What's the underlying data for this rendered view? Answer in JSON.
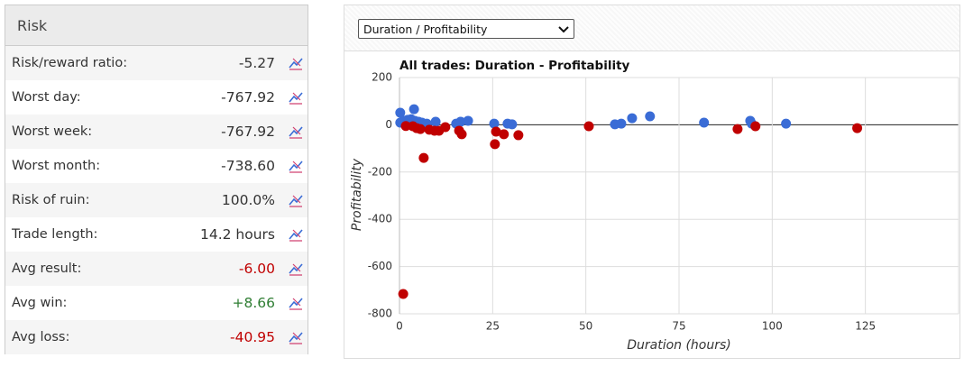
{
  "panel": {
    "title": "Risk",
    "rows": [
      {
        "label": "Risk/reward ratio:",
        "value": "-5.27"
      },
      {
        "label": "Worst day:",
        "value": "-767.92"
      },
      {
        "label": "Worst week:",
        "value": "-767.92"
      },
      {
        "label": "Worst month:",
        "value": "-738.60"
      },
      {
        "label": "Risk of ruin:",
        "value": "100.0%"
      },
      {
        "label": "Trade length:",
        "value": "14.2 hours"
      },
      {
        "label": "Avg result:",
        "value": "-6.00",
        "color": "#c00000"
      },
      {
        "label": "Avg win:",
        "value": "+8.66",
        "color": "#2e7d32"
      },
      {
        "label": "Avg loss:",
        "value": "-40.95",
        "color": "#c00000"
      }
    ]
  },
  "dropdown": {
    "selected": "Duration / Profitability"
  },
  "chart_data": {
    "type": "scatter",
    "title": "All trades: Duration - Profitability",
    "x_label": "Duration (hours)",
    "y_label": "Profitability",
    "xlim": [
      0,
      150
    ],
    "xticks": [
      0,
      25,
      50,
      75,
      100,
      125
    ],
    "ylim": [
      -800,
      200
    ],
    "yticks": [
      -800,
      -600,
      -400,
      -200,
      0,
      200
    ],
    "grid": true,
    "series": [
      {
        "color": "#3a6cd6",
        "x": [
          0.2,
          3.9,
          0.2,
          1.2,
          2.2,
          3.1,
          4.1,
          5.1,
          6.0,
          7.3,
          9.7,
          15.2,
          16.4,
          18.4,
          25.4,
          29.0,
          30.2,
          57.8,
          59.5,
          62.4,
          67.2,
          81.7,
          94.1,
          94.5,
          103.7
        ],
        "y": [
          51,
          66,
          9,
          17,
          21,
          24,
          17,
          13,
          9,
          5,
          13,
          5,
          13,
          17,
          5,
          5,
          2,
          2,
          5,
          28,
          36,
          9,
          17,
          5,
          5
        ]
      },
      {
        "color": "#c00000",
        "x": [
          1.0,
          6.5,
          1.7,
          3.6,
          4.6,
          5.6,
          8.0,
          9.4,
          10.6,
          12.3,
          16.0,
          16.7,
          25.9,
          25.6,
          28.0,
          31.9,
          50.8,
          90.7,
          95.5,
          122.8
        ],
        "y": [
          -716,
          -140,
          -5,
          -6,
          -14,
          -18,
          -21,
          -25,
          -25,
          -10,
          -25,
          -40,
          -29,
          -82,
          -40,
          -44,
          -6,
          -18,
          -6,
          -14
        ]
      }
    ]
  }
}
